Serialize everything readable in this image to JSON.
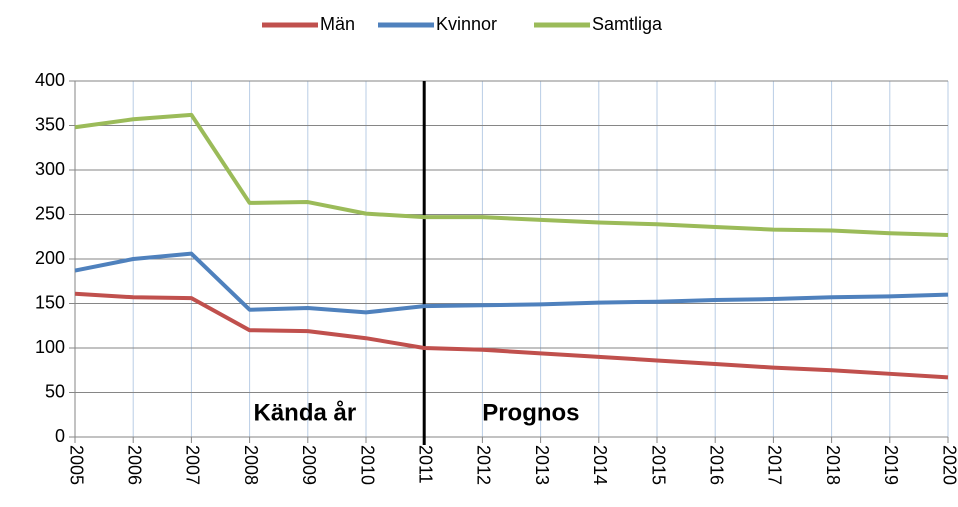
{
  "chart_data": {
    "type": "line",
    "x": [
      2005,
      2006,
      2007,
      2008,
      2009,
      2010,
      2011,
      2012,
      2013,
      2014,
      2015,
      2016,
      2017,
      2018,
      2019,
      2020
    ],
    "series": [
      {
        "name": "Män",
        "color": "#c0504d",
        "values": [
          161,
          157,
          156,
          120,
          119,
          111,
          100,
          98,
          94,
          90,
          86,
          82,
          78,
          75,
          71,
          67
        ]
      },
      {
        "name": "Kvinnor",
        "color": "#4f81bd",
        "values": [
          187,
          200,
          206,
          143,
          145,
          140,
          147,
          148,
          149,
          151,
          152,
          154,
          155,
          157,
          158,
          160
        ]
      },
      {
        "name": "Samtliga",
        "color": "#9bbb59",
        "values": [
          348,
          357,
          362,
          263,
          264,
          251,
          247,
          247,
          244,
          241,
          239,
          236,
          233,
          232,
          229,
          227
        ]
      }
    ],
    "xlim": [
      2005,
      2020
    ],
    "xticks": [
      2005,
      2006,
      2007,
      2008,
      2009,
      2010,
      2011,
      2012,
      2013,
      2014,
      2015,
      2016,
      2017,
      2018,
      2019,
      2020
    ],
    "ylim": [
      0,
      400
    ],
    "yticks": [
      0,
      50,
      100,
      150,
      200,
      250,
      300,
      350,
      400
    ],
    "grid": true,
    "divider_x": 2011,
    "annotations": [
      "Kända år",
      "Prognos"
    ],
    "legend": "top"
  }
}
